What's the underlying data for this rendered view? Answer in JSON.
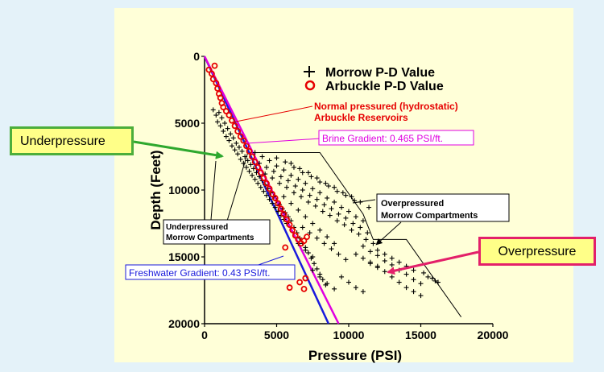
{
  "chart_data": {
    "type": "scatter",
    "xlabel": "Pressure (PSI)",
    "ylabel": "Depth (Feet)",
    "xlim": [
      0,
      20000
    ],
    "ylim": [
      0,
      20000
    ],
    "y_inverted": true,
    "x_ticks": [
      "0",
      "5000",
      "10000",
      "15000",
      "20000"
    ],
    "y_ticks": [
      "0",
      "5000",
      "10000",
      "15000",
      "20000"
    ],
    "grid": false,
    "legend_position": "top-right",
    "series": [
      {
        "name": "Morrow P-D Value",
        "marker": "+",
        "color": "#000000",
        "points": [
          [
            600,
            4000
          ],
          [
            800,
            4400
          ],
          [
            1000,
            4200
          ],
          [
            900,
            4900
          ],
          [
            1200,
            4600
          ],
          [
            1100,
            5200
          ],
          [
            1400,
            5000
          ],
          [
            1300,
            5600
          ],
          [
            1600,
            5400
          ],
          [
            1500,
            6000
          ],
          [
            1800,
            5800
          ],
          [
            1700,
            6300
          ],
          [
            2000,
            6100
          ],
          [
            1900,
            6700
          ],
          [
            2200,
            6500
          ],
          [
            2100,
            7000
          ],
          [
            2400,
            6800
          ],
          [
            2300,
            7300
          ],
          [
            2600,
            7100
          ],
          [
            2500,
            7700
          ],
          [
            2800,
            7500
          ],
          [
            2700,
            8000
          ],
          [
            3000,
            7800
          ],
          [
            2900,
            8300
          ],
          [
            3200,
            8100
          ],
          [
            3100,
            8600
          ],
          [
            3400,
            8400
          ],
          [
            3300,
            8900
          ],
          [
            3600,
            8700
          ],
          [
            3500,
            9200
          ],
          [
            3800,
            9000
          ],
          [
            3700,
            9500
          ],
          [
            4000,
            9300
          ],
          [
            3900,
            9800
          ],
          [
            4200,
            9600
          ],
          [
            4100,
            10100
          ],
          [
            4400,
            9900
          ],
          [
            4300,
            10400
          ],
          [
            4600,
            10200
          ],
          [
            4500,
            10700
          ],
          [
            4800,
            10500
          ],
          [
            4700,
            11000
          ],
          [
            5000,
            10800
          ],
          [
            4900,
            11300
          ],
          [
            5200,
            11100
          ],
          [
            5100,
            11600
          ],
          [
            5400,
            11400
          ],
          [
            5300,
            11900
          ],
          [
            5600,
            11700
          ],
          [
            5500,
            12200
          ],
          [
            5800,
            12000
          ],
          [
            5700,
            12500
          ],
          [
            6000,
            12300
          ],
          [
            6200,
            12800
          ],
          [
            6400,
            13200
          ],
          [
            6600,
            13600
          ],
          [
            6800,
            14000
          ],
          [
            7000,
            14300
          ],
          [
            7200,
            14700
          ],
          [
            7400,
            15100
          ],
          [
            7600,
            15500
          ],
          [
            7800,
            15900
          ],
          [
            8000,
            16300
          ],
          [
            8200,
            16700
          ],
          [
            8400,
            17100
          ],
          [
            3500,
            7200
          ],
          [
            4000,
            7500
          ],
          [
            4500,
            7800
          ],
          [
            5000,
            8200
          ],
          [
            5500,
            8500
          ],
          [
            6000,
            8900
          ],
          [
            6500,
            9200
          ],
          [
            7000,
            9500
          ],
          [
            7500,
            9900
          ],
          [
            8000,
            10200
          ],
          [
            8500,
            10600
          ],
          [
            9000,
            10900
          ],
          [
            9500,
            11300
          ],
          [
            10000,
            11600
          ],
          [
            10500,
            12000
          ],
          [
            11000,
            12300
          ],
          [
            3800,
            8000
          ],
          [
            4300,
            8300
          ],
          [
            4800,
            8600
          ],
          [
            5300,
            9000
          ],
          [
            5800,
            9300
          ],
          [
            6300,
            9700
          ],
          [
            6800,
            10000
          ],
          [
            7300,
            10400
          ],
          [
            7800,
            10700
          ],
          [
            8300,
            11100
          ],
          [
            8800,
            11400
          ],
          [
            9300,
            11800
          ],
          [
            9800,
            12100
          ],
          [
            10300,
            12500
          ],
          [
            10800,
            12800
          ],
          [
            11300,
            13200
          ],
          [
            4200,
            8800
          ],
          [
            4700,
            9100
          ],
          [
            5200,
            9500
          ],
          [
            5700,
            9800
          ],
          [
            6200,
            10200
          ],
          [
            6700,
            10500
          ],
          [
            7200,
            10900
          ],
          [
            7700,
            11200
          ],
          [
            8200,
            11600
          ],
          [
            8700,
            11900
          ],
          [
            9200,
            12300
          ],
          [
            9700,
            12600
          ],
          [
            10200,
            13000
          ],
          [
            10700,
            13300
          ],
          [
            11200,
            13700
          ],
          [
            11700,
            14000
          ],
          [
            5000,
            7600
          ],
          [
            5600,
            7900
          ],
          [
            6200,
            8300
          ],
          [
            6800,
            8700
          ],
          [
            7400,
            9000
          ],
          [
            8000,
            9400
          ],
          [
            8600,
            9700
          ],
          [
            9200,
            10100
          ],
          [
            9800,
            10400
          ],
          [
            10400,
            10800
          ],
          [
            6000,
            8000
          ],
          [
            6600,
            8400
          ],
          [
            7200,
            8700
          ],
          [
            7800,
            9100
          ],
          [
            8400,
            9500
          ],
          [
            9000,
            9800
          ],
          [
            9600,
            10200
          ],
          [
            10200,
            10500
          ],
          [
            10800,
            10900
          ],
          [
            11400,
            11300
          ],
          [
            5500,
            10500
          ],
          [
            6000,
            11000
          ],
          [
            6500,
            11500
          ],
          [
            7000,
            12000
          ],
          [
            7500,
            12500
          ],
          [
            8000,
            13000
          ],
          [
            8500,
            13500
          ],
          [
            9000,
            14000
          ],
          [
            11000,
            14200
          ],
          [
            11500,
            14600
          ],
          [
            12000,
            14900
          ],
          [
            12500,
            15300
          ],
          [
            13000,
            15600
          ],
          [
            13500,
            16000
          ],
          [
            14000,
            16300
          ],
          [
            14500,
            16700
          ],
          [
            15000,
            17000
          ],
          [
            15500,
            16500
          ],
          [
            16000,
            16800
          ],
          [
            11500,
            15500
          ],
          [
            12000,
            15800
          ],
          [
            12500,
            16100
          ],
          [
            13000,
            16500
          ],
          [
            13500,
            16900
          ],
          [
            14000,
            17300
          ],
          [
            14500,
            17600
          ],
          [
            15000,
            17900
          ],
          [
            12000,
            14500
          ],
          [
            12500,
            14800
          ],
          [
            13000,
            15100
          ],
          [
            13500,
            15400
          ],
          [
            14000,
            15700
          ],
          [
            14500,
            16000
          ],
          [
            10500,
            14800
          ],
          [
            11000,
            15100
          ],
          [
            11500,
            15400
          ],
          [
            12000,
            15700
          ],
          [
            15200,
            16200
          ],
          [
            15800,
            16600
          ],
          [
            16200,
            16900
          ],
          [
            9500,
            16500
          ],
          [
            10000,
            16900
          ],
          [
            10500,
            17300
          ],
          [
            11000,
            17600
          ],
          [
            7500,
            16000
          ],
          [
            8000,
            16500
          ],
          [
            8500,
            17000
          ],
          [
            9000,
            17400
          ],
          [
            6500,
            14000
          ],
          [
            7000,
            14500
          ],
          [
            7500,
            15000
          ],
          [
            6800,
            12800
          ],
          [
            7300,
            13200
          ],
          [
            7800,
            13600
          ],
          [
            8300,
            14000
          ],
          [
            8800,
            14400
          ],
          [
            9300,
            14800
          ],
          [
            9800,
            15200
          ]
        ]
      },
      {
        "name": "Arbuckle P-D Value",
        "marker": "o",
        "color": "#e60000",
        "points": [
          [
            300,
            1000
          ],
          [
            500,
            1300
          ],
          [
            700,
            700
          ],
          [
            600,
            1700
          ],
          [
            800,
            2000
          ],
          [
            900,
            2400
          ],
          [
            1000,
            2800
          ],
          [
            1100,
            3100
          ],
          [
            1200,
            3500
          ],
          [
            1300,
            3800
          ],
          [
            1500,
            4100
          ],
          [
            1700,
            4400
          ],
          [
            1900,
            4800
          ],
          [
            2100,
            5200
          ],
          [
            2300,
            5600
          ],
          [
            2500,
            6000
          ],
          [
            2700,
            6300
          ],
          [
            2900,
            6700
          ],
          [
            3100,
            7100
          ],
          [
            3300,
            7500
          ],
          [
            3500,
            7900
          ],
          [
            3700,
            8300
          ],
          [
            3900,
            8700
          ],
          [
            4100,
            9100
          ],
          [
            4300,
            9500
          ],
          [
            4500,
            9900
          ],
          [
            4700,
            10300
          ],
          [
            4900,
            10600
          ],
          [
            5100,
            11000
          ],
          [
            5300,
            11400
          ],
          [
            5500,
            11800
          ],
          [
            5700,
            12200
          ],
          [
            5900,
            12600
          ],
          [
            6100,
            13000
          ],
          [
            6300,
            13400
          ],
          [
            6500,
            13700
          ],
          [
            6700,
            14000
          ],
          [
            6900,
            13800
          ],
          [
            7100,
            13500
          ],
          [
            5600,
            14300
          ],
          [
            5900,
            17300
          ],
          [
            6600,
            16900
          ],
          [
            6900,
            17400
          ],
          [
            7000,
            16600
          ]
        ]
      }
    ],
    "reference_lines": [
      {
        "name": "Freshwater Gradient: 0.43 PSI/ft.",
        "color": "#1a1adc",
        "from": [
          0,
          0
        ],
        "to": [
          8600,
          20000
        ]
      },
      {
        "name": "Brine Gradient: 0.465 PSI/ft.",
        "color": "#e000e0",
        "from": [
          0,
          0
        ],
        "to": [
          9300,
          20000
        ]
      }
    ],
    "overpressure_envelope": [
      [
        3000,
        7200
      ],
      [
        8000,
        7200
      ],
      [
        11000,
        11800
      ],
      [
        11700,
        13700
      ],
      [
        14000,
        13700
      ],
      [
        17800,
        19500
      ]
    ],
    "annotations": {
      "normal_pressured": "Normal pressured (hydrostatic) Arbuckle Reservoirs",
      "normal_pressured_line1": "Normal pressured (hydrostatic)",
      "normal_pressured_line2": "Arbuckle Reservoirs",
      "brine": "Brine Gradient: 0.465 PSI/ft.",
      "freshwater": "Freshwater Gradient: 0.43 PSI/ft.",
      "overpressured_line1": "Overpressured",
      "overpressured_line2": "Morrow Compartments",
      "underpressured_line1": "Underpressured",
      "underpressured_line2": "Morrow Compartments"
    }
  },
  "callouts": {
    "underpressure": "Underpressure",
    "overpressure": "Overpressure"
  },
  "colors": {
    "page_background": "#e4f2f9",
    "plot_background": "#ffffd8",
    "underpressure_arrow": "#2ea82e",
    "overpressure_arrow": "#e3206a",
    "arbuckle_marker": "#e60000"
  }
}
